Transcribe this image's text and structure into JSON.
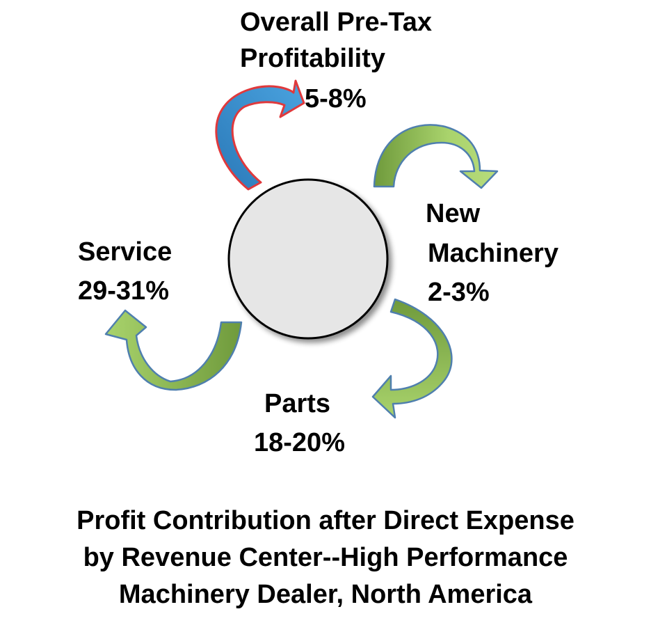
{
  "overall": {
    "line1": "Overall Pre-Tax",
    "line2": "Profitability",
    "value": "5-8%"
  },
  "new_machinery": {
    "line1": "New",
    "line2": "Machinery",
    "value": "2-3%"
  },
  "service": {
    "label": "Service",
    "value": "29-31%"
  },
  "parts": {
    "label": "Parts",
    "value": "18-20%"
  },
  "caption": {
    "line1": "Profit Contribution after Direct Expense",
    "line2": "by Revenue Center--High Performance",
    "line3": "Machinery Dealer, North America"
  },
  "colors": {
    "green_light": "#a9d36c",
    "green_dark": "#6f9a3c",
    "blue_arrow": "#4aa3df",
    "red_outline": "#e0393c",
    "circle_fill": "#e6e6e6"
  }
}
